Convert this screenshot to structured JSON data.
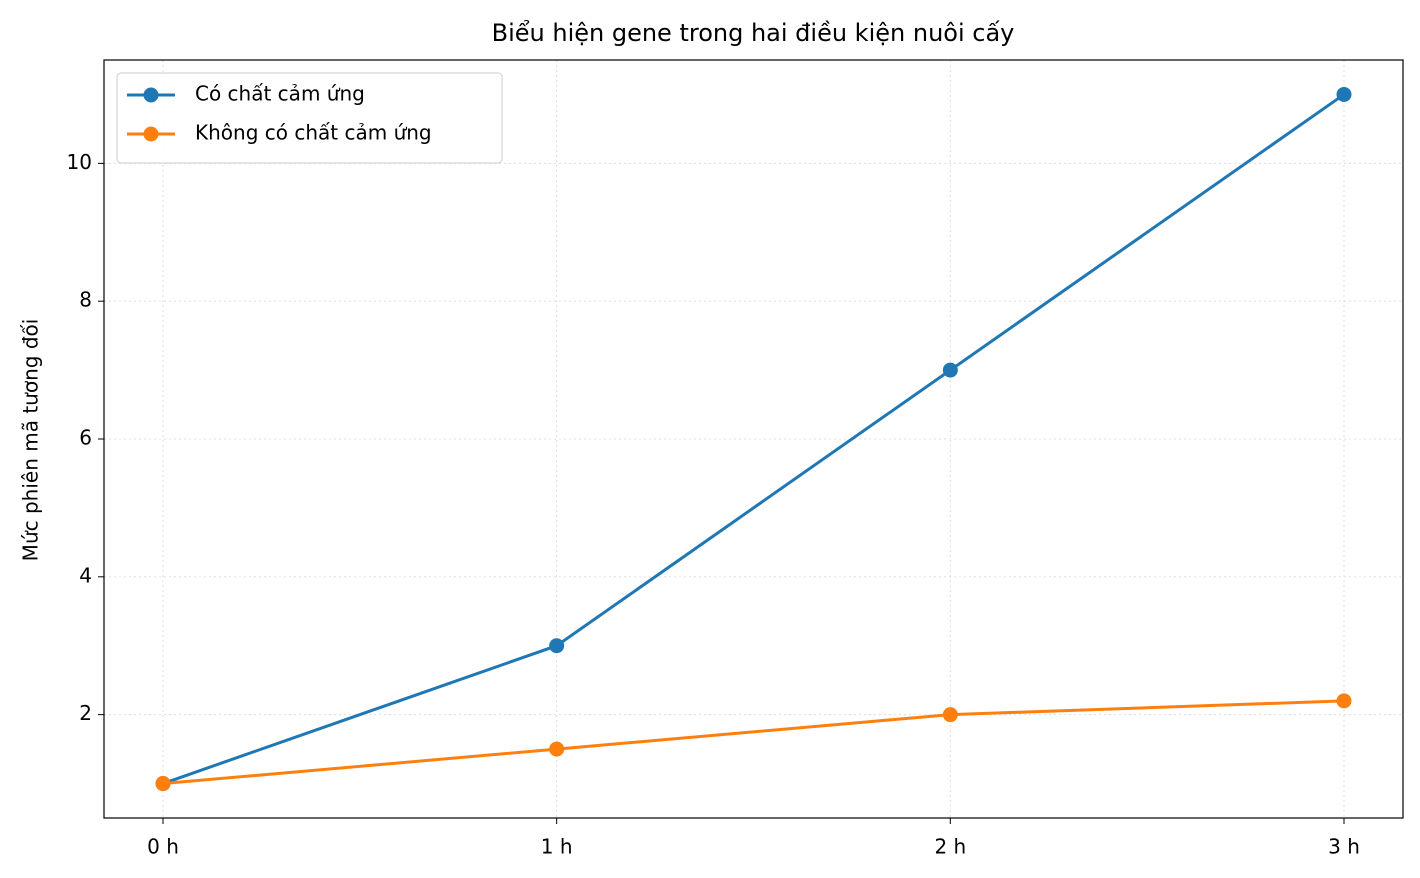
{
  "chart_data": {
    "type": "line",
    "title": "Biểu hiện gene trong hai điều kiện nuôi cấy",
    "y_label": "Mức phiên mã tương đối",
    "categories": [
      "0 h",
      "1 h",
      "2 h",
      "3 h"
    ],
    "series": [
      {
        "name": "Có chất cảm ứng",
        "color": "#1f77b4",
        "values": [
          1,
          3,
          7,
          11
        ]
      },
      {
        "name": "Không có chất cảm ứng",
        "color": "#ff7f0e",
        "values": [
          1,
          1.5,
          2,
          2.2
        ]
      }
    ],
    "ylim": [
      0.5,
      11.5
    ],
    "yticks": [
      2,
      4,
      6,
      8,
      10
    ],
    "grid": true,
    "legend": "upper left"
  }
}
